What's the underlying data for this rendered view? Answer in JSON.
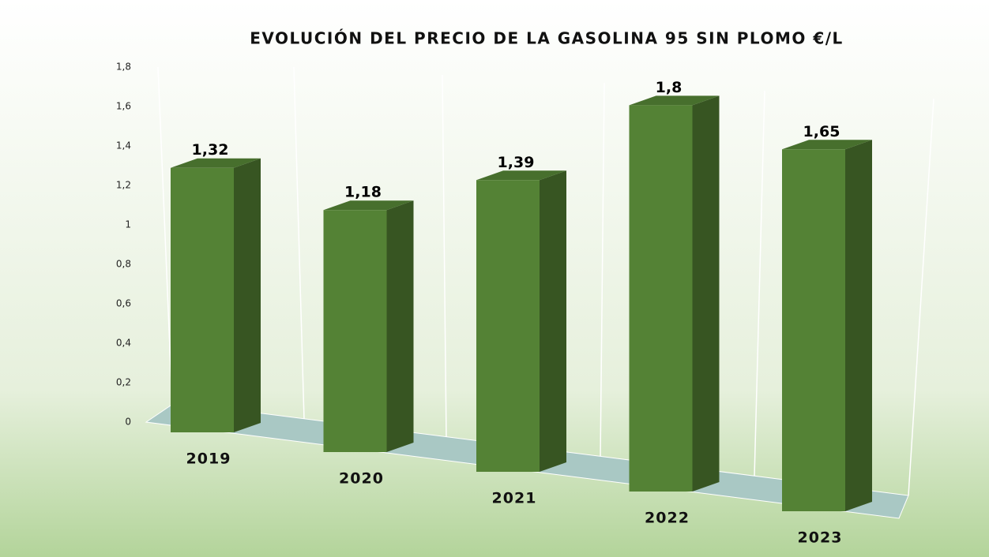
{
  "chart_data": {
    "type": "bar3d",
    "title": "EVOLUCIÓN DEL PRECIO DE LA GASOLINA 95 SIN PLOMO €/L",
    "categories": [
      "2019",
      "2020",
      "2021",
      "2022",
      "2023"
    ],
    "values": [
      1.32,
      1.18,
      1.39,
      1.8,
      1.65
    ],
    "value_labels": [
      "1,32",
      "1,18",
      "1,39",
      "1,8",
      "1,65"
    ],
    "color": "#548235",
    "ylim": [
      0,
      1.8
    ],
    "yticks": [
      0,
      {
        "value": 0.2,
        "label": "0,2"
      },
      {
        "value": 0.4,
        "label": "0,4"
      },
      {
        "value": 0.6,
        "label": "0,6"
      },
      {
        "value": 0.8,
        "label": "0,8"
      },
      1,
      {
        "value": 1.2,
        "label": "1,2"
      },
      {
        "value": 1.4,
        "label": "1,4"
      },
      {
        "value": 1.6,
        "label": "1,6"
      },
      {
        "value": 1.8,
        "label": "1,8"
      }
    ]
  }
}
